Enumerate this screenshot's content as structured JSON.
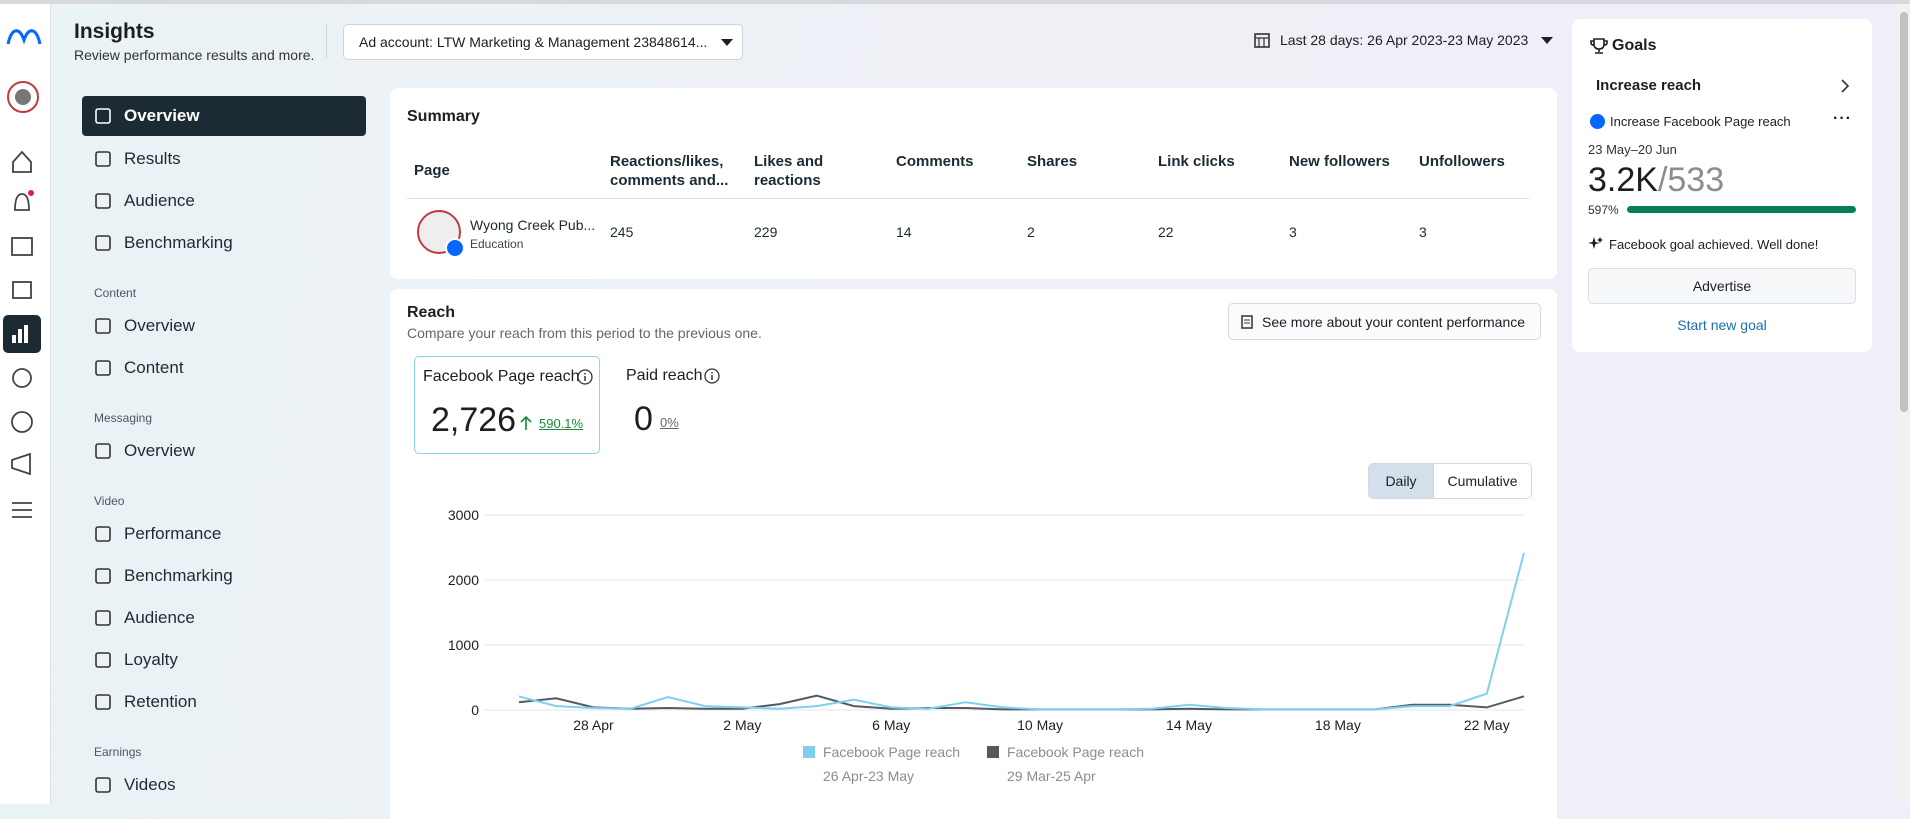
{
  "header": {
    "title": "Insights",
    "subtitle": "Review performance results and more.",
    "ad_account": "Ad account: LTW Marketing & Management 23848614...",
    "date_range": "Last 28 days: 26 Apr 2023-23 May 2023"
  },
  "nav": {
    "main": [
      "Overview",
      "Results",
      "Audience",
      "Benchmarking"
    ],
    "sections": [
      {
        "heading": "Content",
        "items": [
          "Overview",
          "Content"
        ]
      },
      {
        "heading": "Messaging",
        "items": [
          "Overview"
        ]
      },
      {
        "heading": "Video",
        "items": [
          "Performance",
          "Benchmarking",
          "Audience",
          "Loyalty",
          "Retention"
        ]
      },
      {
        "heading": "Earnings",
        "items": [
          "Videos"
        ]
      }
    ]
  },
  "summary": {
    "title": "Summary",
    "columns": [
      "Page",
      "Reactions/likes, comments and...",
      "Likes and reactions",
      "Comments",
      "Shares",
      "Link clicks",
      "New followers",
      "Unfollowers"
    ],
    "row": {
      "page": "Wyong Creek Pub...",
      "category": "Education",
      "values": [
        245,
        229,
        14,
        2,
        22,
        3,
        3
      ]
    }
  },
  "reach": {
    "title": "Reach",
    "subtitle": "Compare your reach from this period to the previous one.",
    "link": "See more about your content performance",
    "metrics": [
      {
        "label": "Facebook Page reach",
        "value": "2,726",
        "change": "590.1%"
      },
      {
        "label": "Paid reach",
        "value": "0",
        "change": "0%"
      }
    ],
    "toggle": [
      "Daily",
      "Cumulative"
    ]
  },
  "chart_data": {
    "type": "line",
    "categories": [
      null,
      null,
      "28 Apr",
      null,
      null,
      null,
      "2 May",
      null,
      null,
      null,
      "6 May",
      null,
      null,
      null,
      "10 May",
      null,
      null,
      null,
      "14 May",
      null,
      null,
      null,
      "18 May",
      null,
      null,
      null,
      "22 May",
      null
    ],
    "series": [
      {
        "name": "Facebook Page reach",
        "period": "26 Apr-23 May",
        "color": "#7fd0ee",
        "values": [
          210,
          60,
          30,
          20,
          200,
          60,
          40,
          20,
          60,
          160,
          40,
          20,
          120,
          40,
          10,
          10,
          10,
          20,
          80,
          30,
          10,
          10,
          10,
          10,
          60,
          60,
          250,
          2420
        ]
      },
      {
        "name": "Facebook Page reach",
        "period": "29 Mar-25 Apr",
        "color": "#555a60",
        "values": [
          120,
          180,
          40,
          20,
          30,
          20,
          20,
          90,
          220,
          60,
          20,
          30,
          30,
          10,
          10,
          10,
          10,
          10,
          20,
          10,
          10,
          10,
          10,
          10,
          80,
          80,
          40,
          210
        ]
      }
    ],
    "ylim": [
      0,
      3000
    ],
    "yticks": [
      0,
      1000,
      2000,
      3000
    ],
    "grid": true
  },
  "goals": {
    "title": "Goals",
    "goal": "Increase reach",
    "item": "Increase Facebook Page reach",
    "dates": "23 May–20 Jun",
    "current": "3.2K",
    "target": "/533",
    "percent": "597%",
    "message": "Facebook goal achieved. Well done!",
    "button": "Advertise",
    "link": "Start new goal"
  }
}
